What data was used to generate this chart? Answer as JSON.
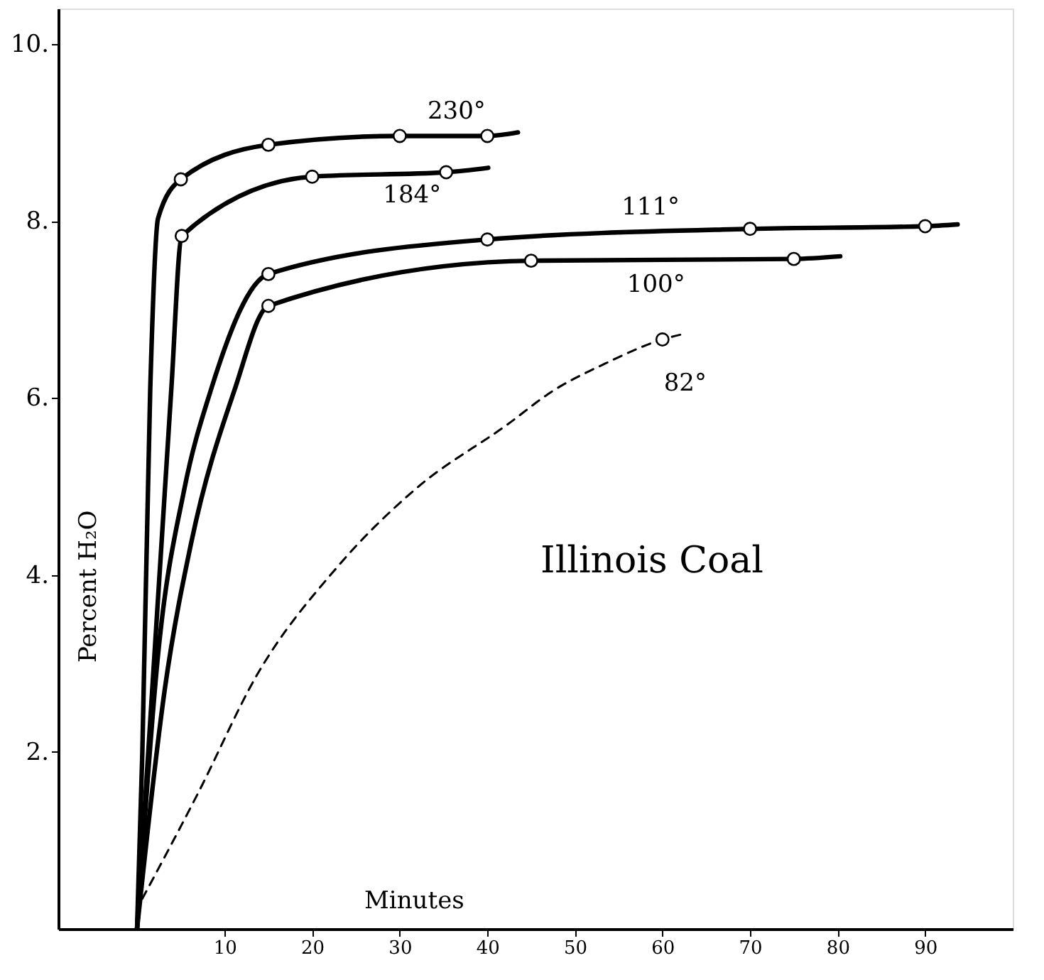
{
  "chart_data": {
    "type": "line",
    "xlabel": "Minutes",
    "ylabel": "Percent H₂O",
    "xlim": [
      -9,
      100
    ],
    "ylim": [
      0,
      10.4
    ],
    "xticks": [
      10,
      20,
      30,
      40,
      50,
      60,
      70,
      80,
      90
    ],
    "yticks": [
      {
        "value": 2,
        "label": "2."
      },
      {
        "value": 4,
        "label": "4."
      },
      {
        "value": 6,
        "label": "6."
      },
      {
        "value": 8,
        "label": "8."
      },
      {
        "value": 10,
        "label": "10."
      }
    ],
    "grid": false,
    "legend": false,
    "series": [
      {
        "type": "line",
        "name": "230°",
        "color": "#000000",
        "line_style": "solid",
        "x": [
          0,
          0.6,
          1.5,
          2.4,
          5,
          15,
          30,
          40,
          43.5
        ],
        "values": [
          0,
          1.98,
          6.08,
          8.03,
          8.47,
          8.86,
          8.96,
          8.96,
          9.0
        ]
      },
      {
        "type": "line",
        "name": "184°",
        "color": "#000000",
        "line_style": "solid",
        "x": [
          0,
          3.9,
          5.1,
          20,
          35.3,
          40.1
        ],
        "values": [
          0,
          6.08,
          7.83,
          8.5,
          8.55,
          8.6
        ]
      },
      {
        "type": "line",
        "name": "111°",
        "color": "#000000",
        "line_style": "solid",
        "x": [
          0,
          2.4,
          5.4,
          8.4,
          15,
          40,
          70,
          90,
          93.7
        ],
        "values": [
          0,
          3.1,
          4.97,
          6.08,
          7.4,
          7.79,
          7.91,
          7.94,
          7.96
        ]
      },
      {
        "type": "line",
        "name": "100°",
        "color": "#000000",
        "line_style": "solid",
        "x": [
          0,
          3.2,
          6.2,
          11.1,
          15,
          45,
          75,
          80.3
        ],
        "values": [
          0,
          2.73,
          4.37,
          6.08,
          7.04,
          7.55,
          7.57,
          7.6
        ]
      },
      {
        "type": "line",
        "name": "82°",
        "color": "#000000",
        "line_style": "dashed",
        "x": [
          0.6,
          7,
          13.7,
          22.7,
          31.8,
          42.3,
          47.5,
          53.5,
          60,
          62.3
        ],
        "values": [
          0.34,
          1.54,
          2.87,
          4.07,
          4.97,
          5.7,
          6.08,
          6.39,
          6.66,
          6.72
        ]
      },
      {
        "type": "scatter",
        "color": "#000000",
        "marker": "circle",
        "x": [
          5,
          15,
          30,
          40,
          5.1,
          20,
          35.3,
          15,
          40,
          70,
          90,
          15,
          45,
          75,
          60
        ],
        "values": [
          8.47,
          8.86,
          8.96,
          8.96,
          7.83,
          8.5,
          8.55,
          7.4,
          7.79,
          7.91,
          7.94,
          7.04,
          7.55,
          7.57,
          6.66
        ]
      }
    ],
    "annotations": [
      "Illinois Coal"
    ]
  }
}
